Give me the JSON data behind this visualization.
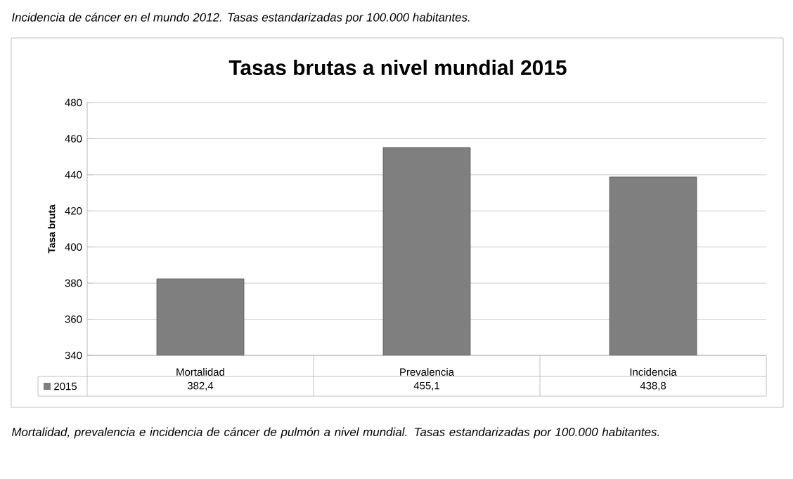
{
  "chart_data": {
    "type": "bar",
    "title": "Tasas brutas a nivel mundial 2015",
    "ylabel": "Tasa bruta",
    "categories": [
      "Mortalidad",
      "Prevalencia",
      "Incidencia"
    ],
    "series": [
      {
        "name": "2015",
        "color": "#7f7f7f",
        "values": [
          382.4,
          455.1,
          438.8
        ],
        "value_labels": [
          "382,4",
          "455,1",
          "438,8"
        ]
      }
    ],
    "ylim": [
      340,
      480
    ],
    "yticks": [
      340,
      360,
      380,
      400,
      420,
      440,
      460,
      480
    ],
    "grid": "y",
    "legend": "bottom",
    "annotations": [
      "Incidencia de cáncer en el mundo 2012. Tasas estandarizadas por 100.000 habitantes.",
      "Mortalidad, prevalencia e incidencia de cáncer de pulmón a nivel mundial. Tasas estandarizadas por 100.000 habitantes."
    ]
  }
}
